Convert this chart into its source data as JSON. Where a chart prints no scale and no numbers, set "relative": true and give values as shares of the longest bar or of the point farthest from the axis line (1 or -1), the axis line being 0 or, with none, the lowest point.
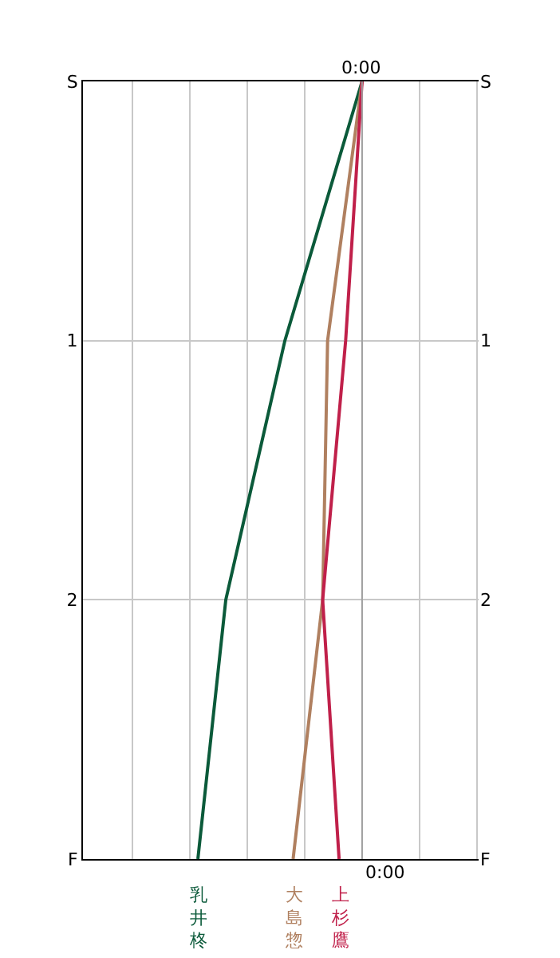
{
  "chart_data": {
    "type": "line",
    "relative": true,
    "orientation": "horizontal",
    "categories": [
      "S",
      "1",
      "2",
      "F"
    ],
    "ref_lines": [
      {
        "axis": "x",
        "value": 0,
        "label": "0:00",
        "color": "#a0a0a0"
      }
    ],
    "grid": true,
    "legend": false,
    "marker": "none",
    "line_style": "solid",
    "series": [
      {
        "name": "乳井柊",
        "color": "#0b5a3a",
        "values": [
          0,
          -0.47,
          -0.83,
          -1
        ]
      },
      {
        "name": "大島惣",
        "color": "#b08060",
        "values": [
          0,
          -0.21,
          -0.24,
          -0.42
        ]
      },
      {
        "name": "上杉鷹",
        "color": "#c0204a",
        "values": [
          0,
          -0.1,
          -0.24,
          -0.14
        ]
      }
    ]
  }
}
